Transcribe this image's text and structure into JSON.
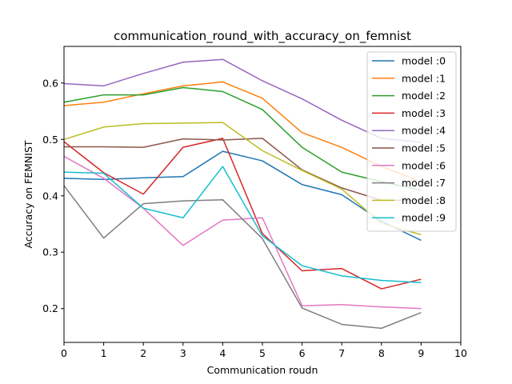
{
  "chart_data": {
    "type": "line",
    "title": "communication_round_with_accuracy_on_femnist",
    "xlabel": "Communication roudn",
    "ylabel": "Accuracy on FEMNIST",
    "xlim": [
      0,
      10
    ],
    "ylim": [
      0.14,
      0.665
    ],
    "x_ticks": [
      0,
      1,
      2,
      3,
      4,
      5,
      6,
      7,
      8,
      9,
      10
    ],
    "y_ticks": [
      0.2,
      0.3,
      0.4,
      0.5,
      0.6
    ],
    "y_tick_labels": [
      "0.2",
      "0.3",
      "0.4",
      "0.5",
      "0.6"
    ],
    "grid": false,
    "legend_position": "top-right",
    "x": [
      0,
      1,
      2,
      3,
      4,
      5,
      6,
      7,
      8,
      9
    ],
    "series": [
      {
        "name": "model :0",
        "color": "#1f77b4",
        "values": [
          0.431,
          0.429,
          0.432,
          0.434,
          0.479,
          0.462,
          0.42,
          0.402,
          0.355,
          0.321
        ]
      },
      {
        "name": "model :1",
        "color": "#ff7f0e",
        "values": [
          0.56,
          0.566,
          0.581,
          0.595,
          0.602,
          0.573,
          0.512,
          0.486,
          0.452,
          0.425
        ]
      },
      {
        "name": "model :2",
        "color": "#2ca02c",
        "values": [
          0.566,
          0.579,
          0.579,
          0.592,
          0.585,
          0.553,
          0.486,
          0.442,
          0.425,
          0.41
        ]
      },
      {
        "name": "model :3",
        "color": "#d62728",
        "values": [
          0.496,
          0.441,
          0.403,
          0.486,
          0.502,
          0.333,
          0.267,
          0.271,
          0.235,
          0.252
        ]
      },
      {
        "name": "model :4",
        "color": "#9467bd",
        "values": [
          0.599,
          0.595,
          0.617,
          0.637,
          0.642,
          0.604,
          0.572,
          0.534,
          0.502,
          0.495
        ]
      },
      {
        "name": "model :5",
        "color": "#8c564b",
        "values": [
          0.487,
          0.487,
          0.486,
          0.501,
          0.499,
          0.502,
          0.446,
          0.414,
          0.392,
          0.392
        ]
      },
      {
        "name": "model :6",
        "color": "#e377c2",
        "values": [
          0.47,
          0.431,
          0.378,
          0.312,
          0.357,
          0.361,
          0.205,
          0.207,
          0.203,
          0.2
        ]
      },
      {
        "name": "model :7",
        "color": "#7f7f7f",
        "values": [
          0.418,
          0.325,
          0.386,
          0.391,
          0.393,
          0.324,
          0.201,
          0.172,
          0.165,
          0.193
        ]
      },
      {
        "name": "model :8",
        "color": "#bcbd22",
        "values": [
          0.5,
          0.522,
          0.528,
          0.529,
          0.53,
          0.48,
          0.445,
          0.412,
          0.351,
          0.331
        ]
      },
      {
        "name": "model :9",
        "color": "#17becf",
        "values": [
          0.442,
          0.44,
          0.378,
          0.361,
          0.452,
          0.329,
          0.276,
          0.258,
          0.25,
          0.246
        ]
      }
    ]
  }
}
